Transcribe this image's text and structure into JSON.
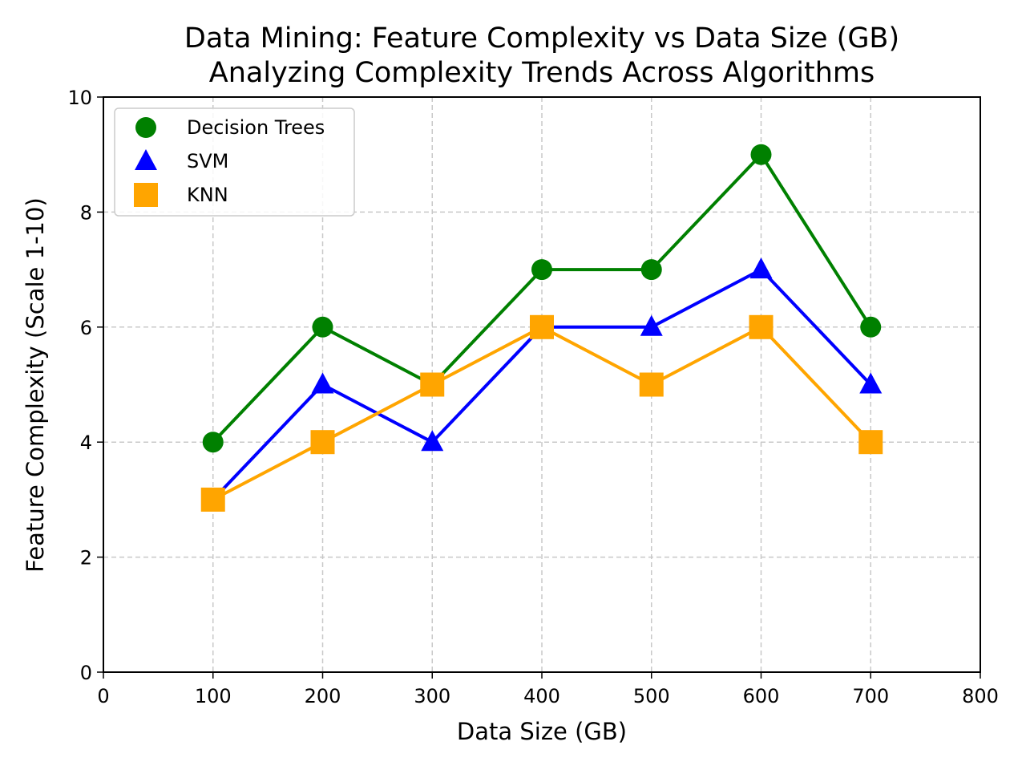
{
  "chart_data": {
    "type": "line",
    "title": "Data Mining: Feature Complexity vs Data Size (GB)",
    "subtitle": "Analyzing Complexity Trends Across Algorithms",
    "xlabel": "Data Size (GB)",
    "ylabel": "Feature Complexity (Scale 1-10)",
    "xlim": [
      0,
      800
    ],
    "ylim": [
      0,
      10
    ],
    "xticks": [
      0,
      100,
      200,
      300,
      400,
      500,
      600,
      700,
      800
    ],
    "yticks": [
      0,
      2,
      4,
      6,
      8,
      10
    ],
    "grid": true,
    "legend_position": "upper-left",
    "x": [
      100,
      200,
      300,
      400,
      500,
      600,
      700
    ],
    "series": [
      {
        "name": "Decision Trees",
        "marker": "circle",
        "color": "#008000",
        "values": [
          4,
          6,
          5,
          7,
          7,
          9,
          6
        ]
      },
      {
        "name": "SVM",
        "marker": "triangle",
        "color": "#0000ff",
        "values": [
          3,
          5,
          4,
          6,
          6,
          7,
          5
        ]
      },
      {
        "name": "KNN",
        "marker": "square",
        "color": "#ffa500",
        "values": [
          3,
          4,
          5,
          6,
          5,
          6,
          4
        ]
      }
    ]
  }
}
